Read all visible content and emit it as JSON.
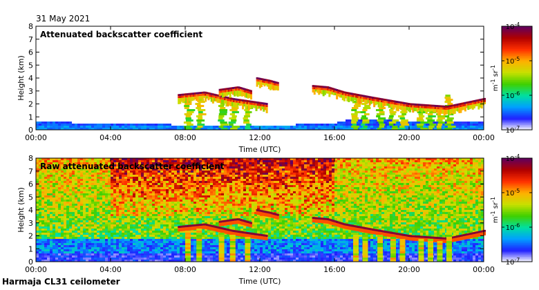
{
  "header": {
    "date": "31 May 2021"
  },
  "footer": {
    "caption": "Harmaja CL31 ceilometer"
  },
  "colors": {
    "scale": [
      "#ffffff",
      "#2020ff",
      "#00a0ff",
      "#00e0a0",
      "#40d000",
      "#c8e000",
      "#ffb000",
      "#ff3000",
      "#b00000",
      "#600060"
    ]
  },
  "chart_data": [
    {
      "type": "heatmap",
      "title": "Attenuated backscatter coefficient",
      "xlabel": "Time (UTC)",
      "ylabel": "Height (km)",
      "xticks": [
        "00:00",
        "04:00",
        "08:00",
        "12:00",
        "16:00",
        "20:00",
        "00:00"
      ],
      "yticks": [
        "0",
        "1",
        "2",
        "3",
        "4",
        "5",
        "6",
        "7",
        "8"
      ],
      "xlim": [
        0,
        24
      ],
      "ylim": [
        0,
        8
      ],
      "colorbar": {
        "unit_main": "m",
        "unit_main_exp": "-1",
        "unit_second": "sr",
        "unit_second_exp": "-1",
        "ticks": [
          {
            "base": "10",
            "exp": "-4",
            "value": -4
          },
          {
            "base": "10",
            "exp": "-5",
            "value": -5
          },
          {
            "base": "10",
            "exp": "-6",
            "value": -6
          },
          {
            "base": "10",
            "exp": "-7",
            "value": -7
          }
        ],
        "range": [
          -7,
          -4
        ]
      },
      "features": {
        "surface_layer_top_km": [
          [
            0,
            0.55
          ],
          [
            4,
            0.4
          ],
          [
            8,
            0.3
          ],
          [
            12,
            0.25
          ],
          [
            16,
            0.4
          ],
          [
            17,
            0.8
          ],
          [
            20,
            0.6
          ],
          [
            24,
            0.5
          ]
        ],
        "cloud_layers": [
          {
            "t": [
              7.6,
              9.0,
              10.5,
              12.4
            ],
            "h": [
              2.6,
              2.8,
              2.3,
              1.9
            ]
          },
          {
            "t": [
              9.8,
              10.8,
              11.5
            ],
            "h": [
              3.0,
              3.2,
              2.9
            ]
          },
          {
            "t": [
              11.8,
              12.5,
              13.0
            ],
            "h": [
              3.9,
              3.7,
              3.5
            ]
          },
          {
            "t": [
              14.8,
              15.6,
              16.5,
              18.0,
              20.0,
              22.0,
              23.0,
              24.0
            ],
            "h": [
              3.3,
              3.2,
              2.8,
              2.4,
              1.9,
              1.7,
              2.0,
              2.3
            ]
          }
        ],
        "rain_streaks": [
          {
            "t": 8.0,
            "top": 2.5
          },
          {
            "t": 8.6,
            "top": 2.6
          },
          {
            "t": 9.8,
            "top": 2.3
          },
          {
            "t": 10.4,
            "top": 2.2
          },
          {
            "t": 11.2,
            "top": 2.0
          },
          {
            "t": 17.0,
            "top": 2.3
          },
          {
            "t": 17.5,
            "top": 2.2
          },
          {
            "t": 18.3,
            "top": 2.1
          },
          {
            "t": 19.0,
            "top": 2.0
          },
          {
            "t": 19.5,
            "top": 1.9
          },
          {
            "t": 20.5,
            "top": 1.8
          },
          {
            "t": 21.0,
            "top": 1.8
          },
          {
            "t": 21.5,
            "top": 1.7
          },
          {
            "t": 22.0,
            "top": 2.8
          }
        ]
      }
    },
    {
      "type": "heatmap",
      "title": "Raw attenuated backscatter coefficient",
      "xlabel": "Time (UTC)",
      "ylabel": "Height (km)",
      "xticks": [
        "00:00",
        "04:00",
        "08:00",
        "12:00",
        "16:00",
        "20:00",
        "00:00"
      ],
      "yticks": [
        "0",
        "1",
        "2",
        "3",
        "4",
        "5",
        "6",
        "7",
        "8"
      ],
      "xlim": [
        0,
        24
      ],
      "ylim": [
        0,
        8
      ],
      "colorbar": {
        "unit_main": "m",
        "unit_main_exp": "-1",
        "unit_second": "sr",
        "unit_second_exp": "-1",
        "ticks": [
          {
            "base": "10",
            "exp": "-4",
            "value": -4
          },
          {
            "base": "10",
            "exp": "-5",
            "value": -5
          },
          {
            "base": "10",
            "exp": "-6",
            "value": -6
          },
          {
            "base": "10",
            "exp": "-7",
            "value": -7
          }
        ],
        "range": [
          -7,
          -4
        ]
      },
      "features": {
        "noise_band_km": [
          [
            0,
            0.0,
            1.8
          ],
          [
            24,
            0.0,
            1.8
          ]
        ],
        "red_noise_region": {
          "t": [
            4,
            16
          ],
          "h_min": 3.5
        }
      }
    }
  ]
}
